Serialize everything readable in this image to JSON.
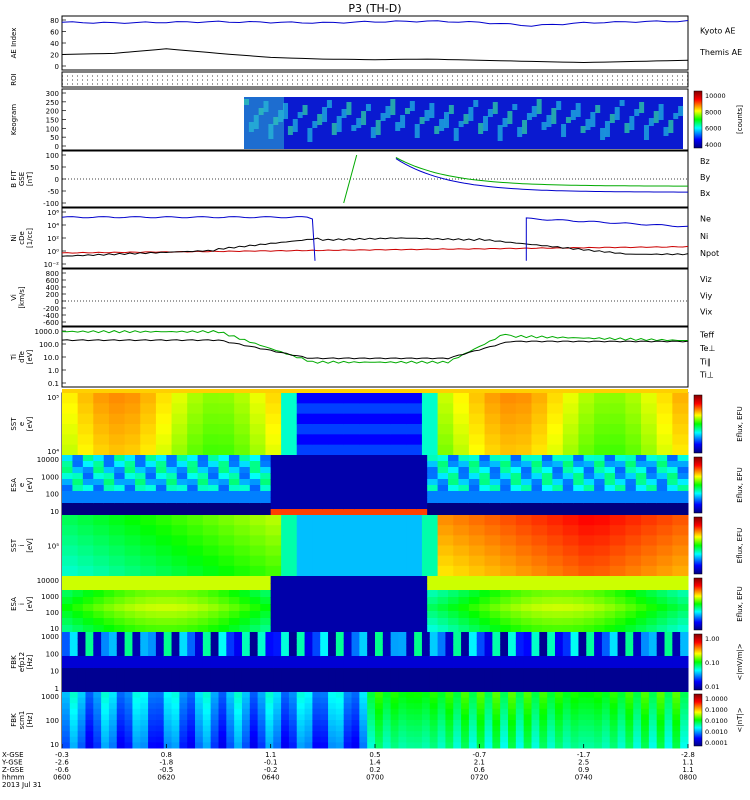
{
  "title": "P3 (TH-D)",
  "date_label": "2013 Jul 31",
  "time_axis": {
    "ticks": [
      "0600",
      "0620",
      "0640",
      "0700",
      "0720",
      "0740",
      "0800"
    ],
    "row_labels": [
      "X-GSE",
      "Y-GSE",
      "Z-GSE",
      "hhmm"
    ],
    "x_gse": [
      "-0.3",
      "0.8",
      "1.1",
      "0.5",
      "-0.7",
      "-1.7",
      "-2.8"
    ],
    "y_gse": [
      "-2.6",
      "-1.8",
      "-0.1",
      "1.4",
      "2.1",
      "2.5",
      "1.1"
    ],
    "z_gse": [
      "-0.6",
      "-0.5",
      "-0.2",
      "0.2",
      "0.6",
      "0.9",
      "1.1"
    ]
  },
  "colors": {
    "red": "#cc0000",
    "green": "#00aa00",
    "blue": "#0000cc",
    "black": "#000000"
  },
  "panels": {
    "ae": {
      "ylabel": "AE Index",
      "ticks": [
        "0",
        "20",
        "40",
        "60",
        "80"
      ],
      "legend": [
        "Kyoto AE",
        "Themis AE"
      ]
    },
    "roi": {
      "ylabel": "ROI"
    },
    "keogram": {
      "ylabel": "Keogram",
      "ticks": [
        "0",
        "50",
        "100",
        "150",
        "200",
        "250",
        "300"
      ],
      "colorbar_ticks": [
        "10000",
        "8000",
        "6000",
        "4000"
      ],
      "colorbar_label": "[counts]"
    },
    "bfit": {
      "ylabel": "B FIT\nGSE\n[nT]",
      "ticks": [
        "100",
        "50",
        "0",
        "-50",
        "-100"
      ],
      "legend": [
        "Bz",
        "By",
        "Bx"
      ]
    },
    "density": {
      "ylabel": "Ni\ncDe\n[1/cc]",
      "ticks": [
        "10⁻²",
        "10⁰",
        "10²",
        "10⁴",
        "10⁶"
      ],
      "legend": [
        "Ne",
        "Ni",
        "Npot"
      ]
    },
    "velocity": {
      "ylabel": "Vi\n[km/s]",
      "ticks": [
        "800",
        "600",
        "400",
        "200",
        "0",
        "-200",
        "-400",
        "-600"
      ],
      "legend": [
        "Viz",
        "Viy",
        "Vix"
      ]
    },
    "temperature": {
      "ylabel": "Ti\ndTe\n[eV]",
      "ticks": [
        "1000.0",
        "100.0",
        "10.0",
        "1.0",
        "0.1"
      ],
      "legend": [
        "Teff",
        "Te⊥",
        "Ti∥",
        "Ti⊥"
      ]
    },
    "sst_e": {
      "ylabel": "SST\ne\n[eV]",
      "ticks": [
        "10⁵",
        "10⁴"
      ],
      "cbar_label": "Eflux, EFU"
    },
    "esa_e": {
      "ylabel": "ESA\ne\n[eV]",
      "ticks": [
        "10000",
        "1000",
        "100",
        "10"
      ],
      "cbar_label": "Eflux, EFU"
    },
    "sst_i": {
      "ylabel": "SST\ni\n[eV]",
      "ticks": [
        "10⁵"
      ],
      "cbar_label": "Eflux, EFU"
    },
    "esa_i": {
      "ylabel": "ESA\ni\n[eV]",
      "ticks": [
        "10000",
        "1000",
        "100",
        "10"
      ],
      "cbar_label": "Eflux, EFU"
    },
    "fbk_e": {
      "ylabel": "FBK\nefp12\n[Hz]",
      "ticks": [
        "1000",
        "100",
        "10",
        "1"
      ],
      "cbar_ticks": [
        "1.00",
        "0.10",
        "0.01"
      ],
      "cbar_label": "<|mV/m|>"
    },
    "fbk_b": {
      "ylabel": "FBK\nscm1\n[Hz]",
      "ticks": [
        "1000",
        "100",
        "10"
      ],
      "cbar_ticks": [
        "1.0000",
        "0.1000",
        "0.0100",
        "0.0010",
        "0.0001"
      ],
      "cbar_label": "<|nT|>"
    }
  },
  "chart_data": {
    "type": "line",
    "title": "P3 (TH-D)",
    "x": [
      "06:00",
      "06:10",
      "06:20",
      "06:30",
      "06:40",
      "06:50",
      "07:00",
      "07:10",
      "07:20",
      "07:30",
      "07:40",
      "07:50",
      "08:00"
    ],
    "series": [
      {
        "name": "Kyoto AE",
        "values": [
          76,
          75,
          76,
          77,
          76,
          75,
          77,
          78,
          76,
          70,
          75,
          77,
          78
        ]
      },
      {
        "name": "Themis AE",
        "values": [
          20,
          22,
          30,
          22,
          15,
          12,
          11,
          12,
          10,
          8,
          6,
          8,
          10
        ]
      },
      {
        "name": "Bx",
        "values": [
          null,
          null,
          null,
          null,
          null,
          null,
          null,
          null,
          35,
          -20,
          -45,
          -50,
          -50
        ]
      },
      {
        "name": "By",
        "values": [
          null,
          null,
          null,
          null,
          null,
          null,
          -100,
          null,
          45,
          -5,
          -25,
          -30,
          -30
        ]
      },
      {
        "name": "Ne",
        "values": [
          1,
          1.5,
          2,
          3,
          5,
          8,
          10,
          5,
          3,
          3,
          3,
          4,
          3
        ]
      },
      {
        "name": "Ni",
        "values": [
          0.1,
          0.2,
          0.5,
          2,
          50,
          20,
          0.5,
          0.3,
          0.2,
          0.2,
          0.5,
          0.8,
          0.3
        ]
      },
      {
        "name": "Npot",
        "values": [
          100000,
          150000,
          200000,
          200000,
          null,
          100000,
          200000,
          100000,
          50000,
          20000,
          15000,
          5000,
          5000
        ]
      },
      {
        "name": "Te⊥",
        "values": [
          200,
          200,
          150,
          120,
          5,
          5,
          100,
          150,
          150,
          150,
          200,
          100,
          150
        ]
      },
      {
        "name": "Ti∥",
        "values": [
          1000,
          900,
          700,
          400,
          2,
          2,
          400,
          600,
          400,
          200,
          200,
          50,
          200
        ]
      }
    ]
  }
}
